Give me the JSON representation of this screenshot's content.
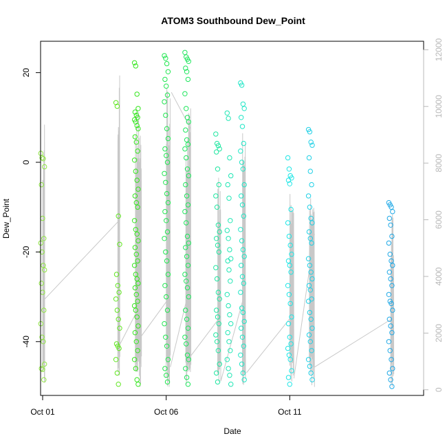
{
  "chart_data": {
    "type": "scatter",
    "title": "ATOM3 Southbound Dew_Point",
    "xlabel": "Date",
    "ylabel": "Dew_Point",
    "x_axis": {
      "type": "date",
      "lim": [
        "2015-09-30T22:00",
        "2015-10-16T10:00"
      ],
      "ticks": [
        {
          "value": "2015-10-01",
          "label": "Oct 01"
        },
        {
          "value": "2015-10-06",
          "label": "Oct 06"
        },
        {
          "value": "2015-10-11",
          "label": "Oct 11"
        }
      ]
    },
    "y_axis_left": {
      "lim": [
        -52,
        27
      ],
      "ticks": [
        {
          "value": 20,
          "label": "20"
        },
        {
          "value": 0,
          "label": "0"
        },
        {
          "value": -20,
          "label": "-20"
        },
        {
          "value": -40,
          "label": "-40"
        }
      ]
    },
    "y_axis_right": {
      "color": "#b8b8b8",
      "lim": [
        -200,
        12300
      ],
      "ticks": [
        {
          "value": 0,
          "label": "0"
        },
        {
          "value": 2000,
          "label": "2000"
        },
        {
          "value": 4000,
          "label": "4000"
        },
        {
          "value": 6000,
          "label": "6000"
        },
        {
          "value": 8000,
          "label": "8000"
        },
        {
          "value": 10000,
          "label": "10000"
        },
        {
          "value": 12000,
          "label": "12000"
        }
      ]
    },
    "grid": false,
    "marker": "open-circle",
    "point_groups": [
      {
        "date": "2015-10-01T00:00",
        "color": "#8fe642",
        "values": [
          2,
          1,
          0.8,
          -1,
          -5,
          -12.5,
          -17,
          -18,
          -20,
          -23,
          -24,
          -27,
          -29,
          -33,
          -36,
          -39,
          -40,
          -45,
          -46,
          -46.2,
          -48.5
        ]
      },
      {
        "date": "2015-10-04T01:00",
        "color": "#5fe61f",
        "values": [
          13.3,
          12.5,
          -12,
          -18.3,
          -25,
          -27.5,
          -29,
          -30.5,
          -33,
          -35,
          -37,
          -40.5,
          -41,
          -41.5,
          -44,
          -47,
          -49.5
        ]
      },
      {
        "date": "2015-10-04T19:00",
        "color": "#33e61c",
        "values": [
          22.2,
          21.5,
          15.2,
          12,
          11.2,
          10.5,
          10,
          9.5,
          9,
          8.2,
          7.5,
          5.7,
          4.5,
          2.5,
          0.5,
          -2,
          -4,
          -6,
          -7.5,
          -9,
          -10,
          -13,
          -15,
          -16,
          -17.5,
          -19,
          -20.5,
          -22,
          -23,
          -25,
          -26,
          -27,
          -28,
          -29.5,
          -31,
          -32,
          -33,
          -34.5,
          -36.5,
          -38,
          -40,
          -42,
          -44,
          -46,
          -48.5,
          -49.5
        ]
      },
      {
        "date": "2015-10-06T00:00",
        "color": "#20e650",
        "values": [
          23.8,
          23.2,
          22,
          20.2,
          18.5,
          17,
          15,
          13.5,
          10.5,
          7.5,
          5.3,
          3,
          1.5,
          0,
          -2.5,
          -4.5,
          -7,
          -9,
          -11,
          -13,
          -15.5,
          -17,
          -20,
          -22,
          -25,
          -27.5,
          -30,
          -33,
          -36,
          -39,
          -41,
          -44,
          -46,
          -47.5,
          -49
        ]
      },
      {
        "date": "2015-10-06T20:00",
        "color": "#1ee65c",
        "values": [
          24.5,
          23.5,
          23,
          22.5,
          21,
          20.2,
          18.5,
          15.3,
          12,
          10,
          9,
          7.2,
          5,
          4,
          3,
          1,
          -1.5,
          -3,
          -5,
          -7.5,
          -9.5,
          -11,
          -13.5,
          -16.5,
          -18,
          -19,
          -21,
          -23,
          -25,
          -26.5,
          -28,
          -30,
          -33,
          -35,
          -37,
          -39,
          -40.5,
          -43,
          -44,
          -46,
          -48,
          -49.5
        ]
      },
      {
        "date": "2015-10-08T02:00",
        "color": "#1ee6a0",
        "values": [
          6.3,
          4.2,
          3.7,
          3,
          2.3,
          -1.5,
          -5,
          -7.5,
          -10,
          -14,
          -15.5,
          -17,
          -18.5,
          -20,
          -23.5,
          -26,
          -29,
          -30.5,
          -33,
          -34.5,
          -36,
          -38.5,
          -40,
          -42,
          -45,
          -47,
          -49
        ]
      },
      {
        "date": "2015-10-08T13:00",
        "color": "#1ee6b4",
        "values": [
          11,
          9.8,
          1,
          -3,
          -5,
          -8,
          -13,
          -15.2,
          -17,
          -19.5,
          -21.5,
          -22,
          -24,
          -26.5,
          -29.5,
          -32,
          -34,
          -36,
          -38,
          -40,
          -42,
          -44,
          -46,
          -47.5,
          -49.5
        ]
      },
      {
        "date": "2015-10-09T02:00",
        "color": "#1ee6c6",
        "values": [
          17.7,
          17.2,
          13,
          12,
          10,
          8,
          4.2,
          2.5,
          0,
          -1.5,
          -5,
          -7.5,
          -9.5,
          -12,
          -15,
          -17.5,
          -19.5,
          -21,
          -23,
          -25.5,
          -27,
          -29,
          -32.5,
          -33.5,
          -35.5,
          -37,
          -39,
          -41,
          -43,
          -45,
          -47,
          -48.5
        ]
      },
      {
        "date": "2015-10-11T00:00",
        "color": "#1ee6e6",
        "values": [
          1,
          -1.5,
          -3,
          -3.5,
          -4,
          -4.8,
          -10.5,
          -13.5,
          -16.5,
          -18.5,
          -20.5,
          -22,
          -23,
          -24.5,
          -27.5,
          -29.5,
          -31.5,
          -34.5,
          -36,
          -39,
          -40.5,
          -41.5,
          -43,
          -44,
          -46.5,
          -48,
          -49.5
        ]
      },
      {
        "date": "2015-10-11T20:00",
        "color": "#1ed0e6",
        "values": [
          7.3,
          6.8,
          4.5,
          3.8,
          1,
          -2,
          -5,
          -7.5,
          -10,
          -12.5,
          -13.5,
          -15.5,
          -17,
          -18,
          -21.5,
          -23,
          -24.5,
          -26,
          -27.5,
          -28.5,
          -30.5,
          -31,
          -33.5,
          -35,
          -37,
          -38.5,
          -40,
          -42,
          -44,
          -45.5,
          -47,
          -48.5
        ]
      },
      {
        "date": "2015-10-15T02:00",
        "color": "#1ea8e6",
        "values": [
          -9,
          -9.5,
          -10,
          -11,
          -12.5,
          -14,
          -16.5,
          -18,
          -20.5,
          -22,
          -23,
          -24.5,
          -26,
          -27.5,
          -29.5,
          -31,
          -31.5,
          -33,
          -35,
          -36.5,
          -38,
          -40,
          -42,
          -44,
          -46,
          -47,
          -48.5,
          -50
        ]
      }
    ],
    "altitude_lines": {
      "color": "#c8c8c8",
      "axis": "right",
      "flight_profiles": [
        {
          "start": "2015-10-01T00:00",
          "end": "2015-10-01T02:00",
          "peak": 9500,
          "samples": 6
        },
        {
          "start": "2015-10-04T01:00",
          "end": "2015-10-04T03:00",
          "peak": 11300,
          "samples": 5
        },
        {
          "start": "2015-10-04T18:00",
          "end": "2015-10-05T00:00",
          "peak": 10000,
          "samples": 14
        },
        {
          "start": "2015-10-06T00:00",
          "end": "2015-10-06T04:00",
          "peak": 11000,
          "samples": 10
        },
        {
          "start": "2015-10-06T19:00",
          "end": "2015-10-07T00:00",
          "peak": 10000,
          "samples": 10
        },
        {
          "start": "2015-10-08T02:00",
          "end": "2015-10-08T05:00",
          "peak": 7500,
          "samples": 8
        },
        {
          "start": "2015-10-09T02:00",
          "end": "2015-10-09T05:00",
          "peak": 9300,
          "samples": 8
        },
        {
          "start": "2015-10-11T00:00",
          "end": "2015-10-11T04:00",
          "peak": 7000,
          "samples": 8
        },
        {
          "start": "2015-10-11T19:00",
          "end": "2015-10-12T00:00",
          "peak": 7200,
          "samples": 10
        },
        {
          "start": "2015-10-15T02:00",
          "end": "2015-10-15T05:00",
          "peak": 6200,
          "samples": 6
        }
      ],
      "connectors": [
        {
          "from": {
            "date": "2015-10-01T02:00",
            "value": 3200
          },
          "to": {
            "date": "2015-10-04T03:00",
            "value": 6000
          }
        },
        {
          "from": {
            "date": "2015-10-04T03:00",
            "value": 1600
          },
          "to": {
            "date": "2015-10-04T20:00",
            "value": 2800
          }
        },
        {
          "from": {
            "date": "2015-10-05T00:00",
            "value": 1900
          },
          "to": {
            "date": "2015-10-06T02:00",
            "value": 3200
          }
        },
        {
          "from": {
            "date": "2015-10-06T04:00",
            "value": 800
          },
          "to": {
            "date": "2015-10-07T00:00",
            "value": 3800
          }
        },
        {
          "from": {
            "date": "2015-10-06T05:00",
            "value": 10500
          },
          "to": {
            "date": "2015-10-07T00:00",
            "value": 9200
          }
        },
        {
          "from": {
            "date": "2015-10-07T00:00",
            "value": 1200
          },
          "to": {
            "date": "2015-10-08T05:00",
            "value": 2600
          }
        },
        {
          "from": {
            "date": "2015-10-08T05:00",
            "value": 300
          },
          "to": {
            "date": "2015-10-09T05:00",
            "value": 3500
          }
        },
        {
          "from": {
            "date": "2015-10-09T06:00",
            "value": 600
          },
          "to": {
            "date": "2015-10-11T02:00",
            "value": 2600
          }
        },
        {
          "from": {
            "date": "2015-10-11T04:00",
            "value": 400
          },
          "to": {
            "date": "2015-10-12T00:00",
            "value": 5500
          }
        },
        {
          "from": {
            "date": "2015-10-12T00:00",
            "value": 800
          },
          "to": {
            "date": "2015-10-15T03:00",
            "value": 2500
          }
        }
      ]
    }
  }
}
